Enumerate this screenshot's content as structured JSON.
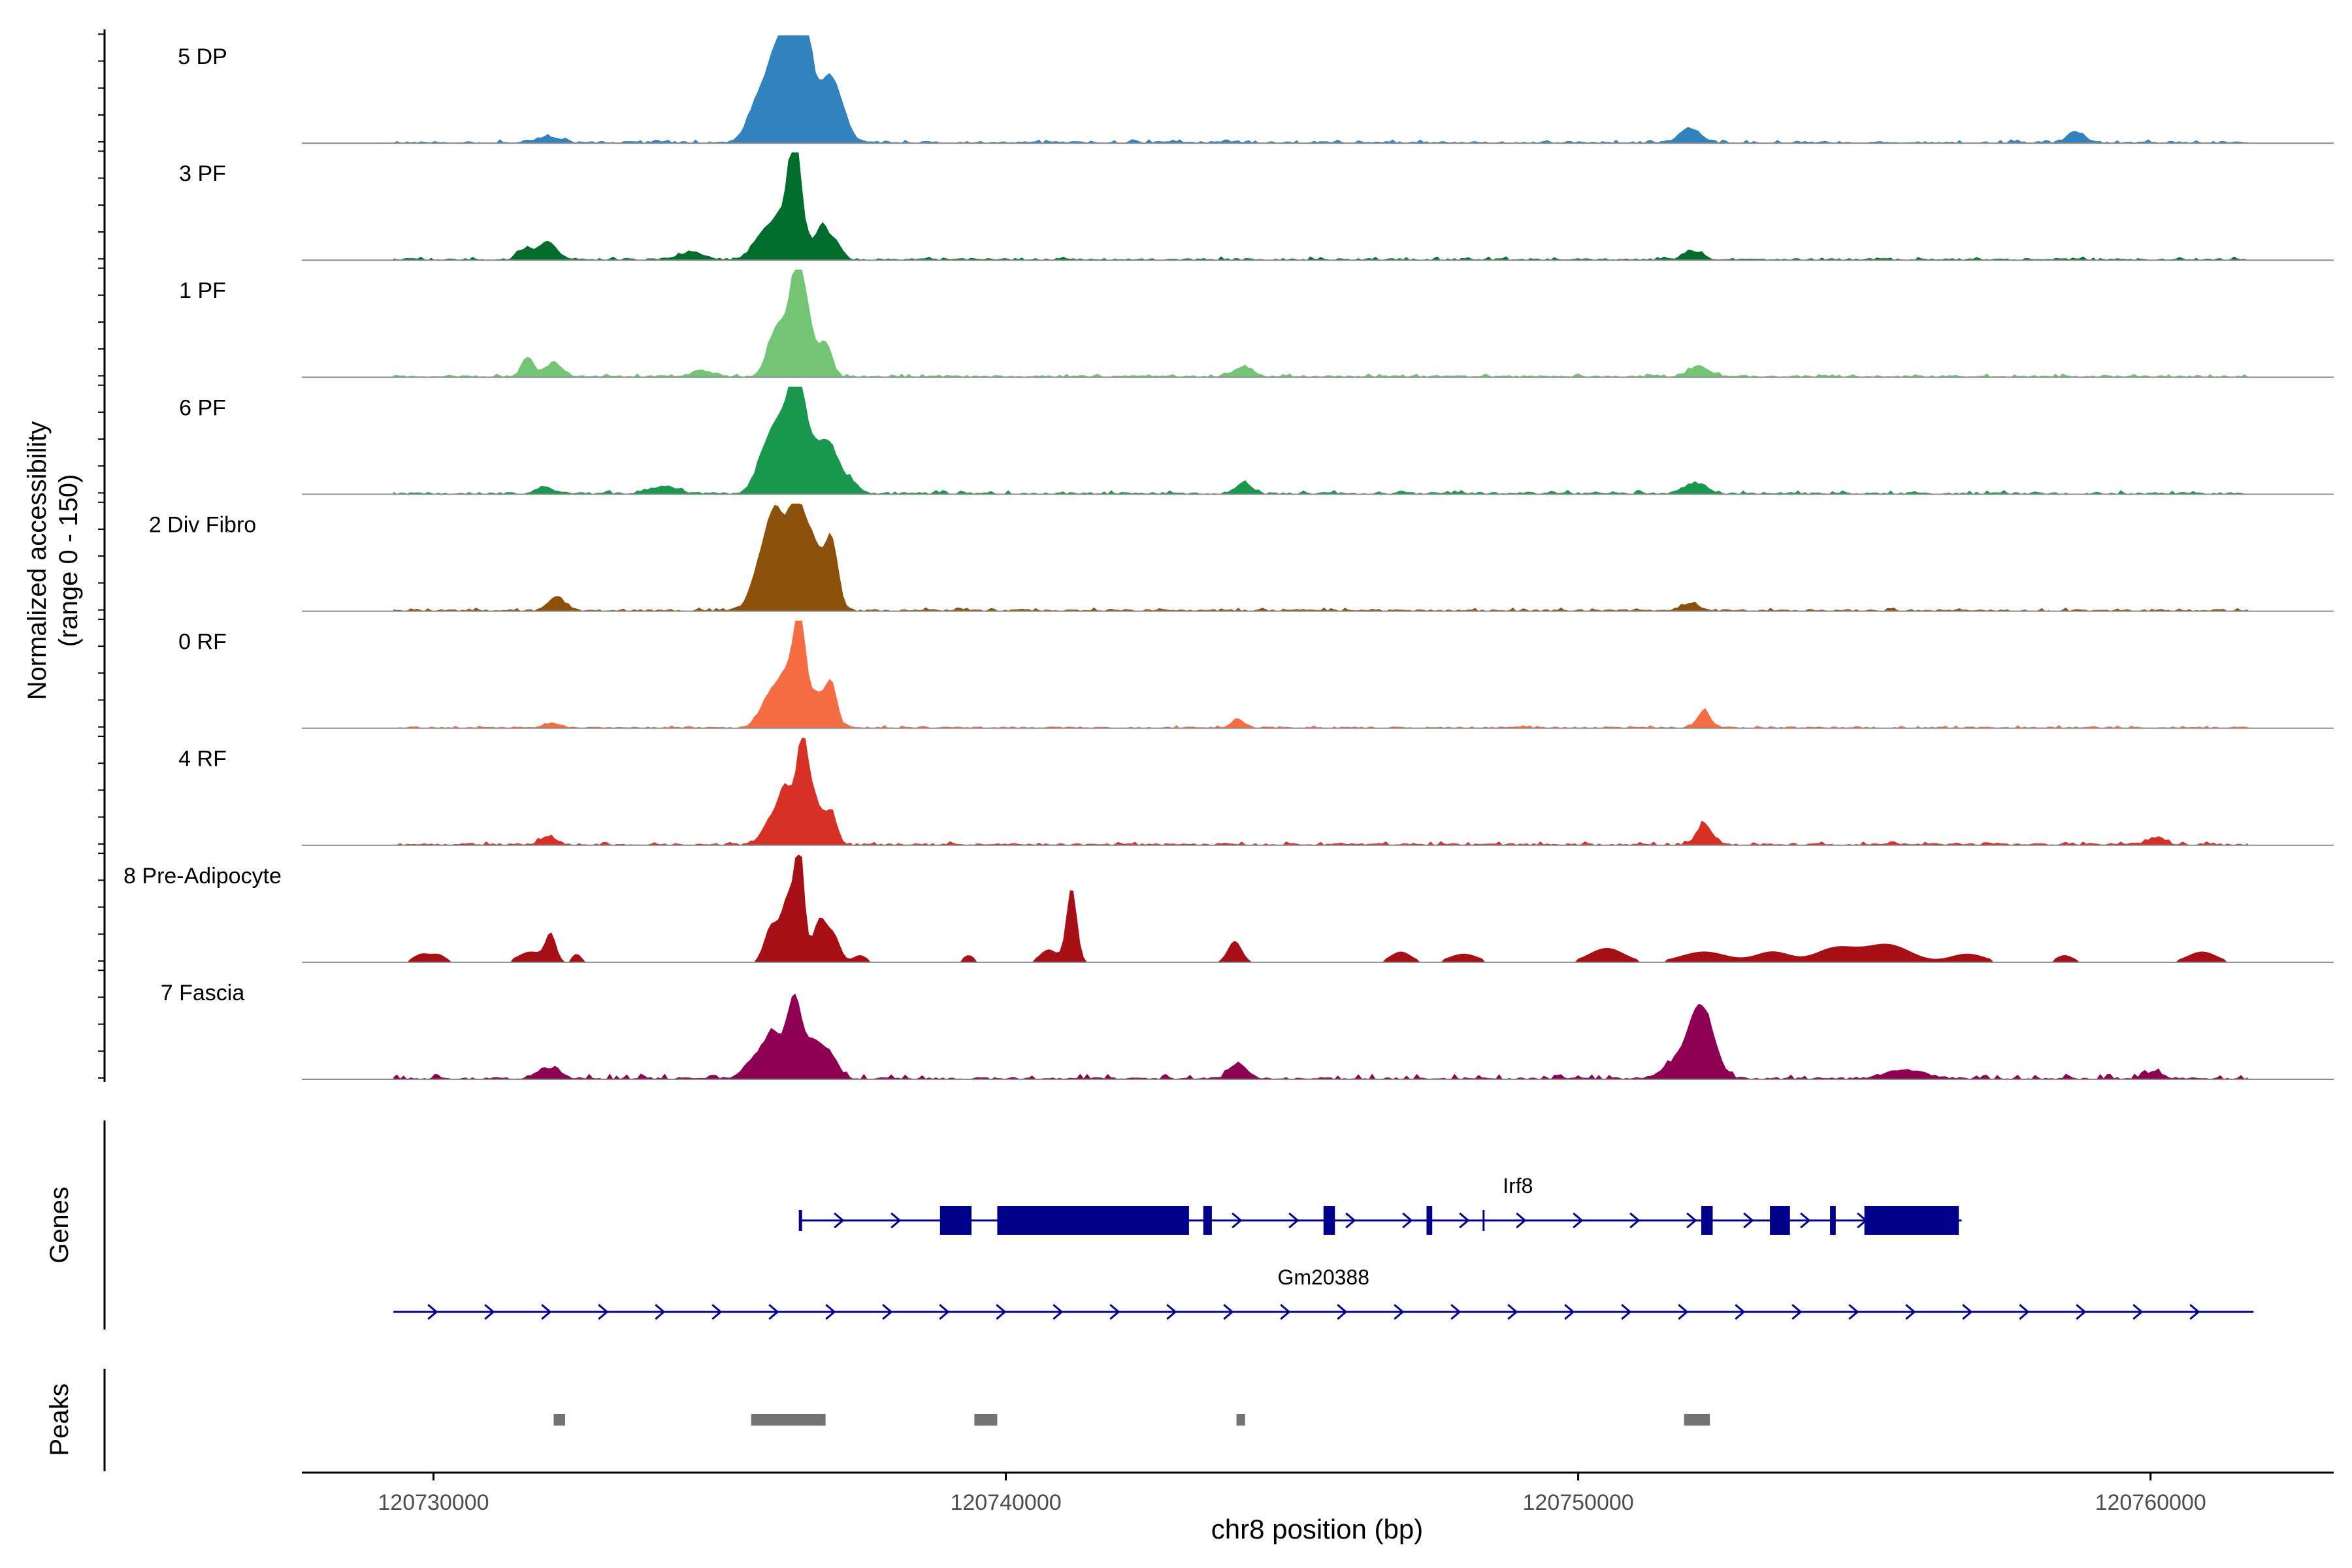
{
  "chart_data": {
    "type": "area",
    "title": "",
    "chromosome": "chr8",
    "xlabel": "chr8 position (bp)",
    "ylabel": "Normalized accessibility",
    "ylabel_range": "(range 0 - 150)",
    "xlim": [
      120727700,
      120763200
    ],
    "ylim": [
      0,
      150
    ],
    "x_ticks": [
      120730000,
      120740000,
      120750000,
      120760000
    ],
    "x_tick_labels": [
      "120730000",
      "120740000",
      "120750000",
      "120760000"
    ],
    "region": [
      120729300,
      120761700
    ],
    "tracks": [
      {
        "name": "5 DP",
        "color": "#3182bd",
        "baseline": 3,
        "noise": 1.2,
        "spikiness": 0.2,
        "noise_seed": 11,
        "peaks": [
          [
            120732000,
            220,
            8
          ],
          [
            120735700,
            200,
            60
          ],
          [
            120736050,
            180,
            120
          ],
          [
            120736350,
            150,
            150
          ],
          [
            120736500,
            120,
            110
          ],
          [
            120736850,
            160,
            80
          ],
          [
            120737100,
            150,
            45
          ],
          [
            120751950,
            180,
            20
          ],
          [
            120758700,
            150,
            15
          ]
        ]
      },
      {
        "name": "3 PF",
        "color": "#006d2c",
        "baseline": 3,
        "noise": 1.2,
        "spikiness": 0.2,
        "noise_seed": 23,
        "peaks": [
          [
            120731600,
            130,
            15
          ],
          [
            120732000,
            150,
            25
          ],
          [
            120734500,
            200,
            10
          ],
          [
            120735750,
            180,
            35
          ],
          [
            120736100,
            160,
            60
          ],
          [
            120736300,
            90,
            150
          ],
          [
            120736450,
            120,
            45
          ],
          [
            120736800,
            110,
            50
          ],
          [
            120737050,
            100,
            22
          ],
          [
            120752000,
            170,
            12
          ]
        ]
      },
      {
        "name": "1 PF",
        "color": "#74c476",
        "baseline": 3,
        "noise": 1.2,
        "spikiness": 0.2,
        "noise_seed": 37,
        "peaks": [
          [
            120731650,
            100,
            28
          ],
          [
            120732100,
            150,
            20
          ],
          [
            120734700,
            200,
            8
          ],
          [
            120735900,
            130,
            35
          ],
          [
            120736100,
            140,
            60
          ],
          [
            120736350,
            110,
            150
          ],
          [
            120736550,
            110,
            70
          ],
          [
            120736850,
            110,
            48
          ],
          [
            120744150,
            160,
            15
          ],
          [
            120752100,
            180,
            15
          ]
        ]
      },
      {
        "name": "6 PF",
        "color": "#1a9850",
        "baseline": 3,
        "noise": 1.5,
        "spikiness": 0.2,
        "noise_seed": 41,
        "peaks": [
          [
            120731950,
            150,
            10
          ],
          [
            120734000,
            250,
            10
          ],
          [
            120735800,
            180,
            50
          ],
          [
            120736100,
            180,
            90
          ],
          [
            120736350,
            120,
            150
          ],
          [
            120736600,
            130,
            60
          ],
          [
            120736900,
            150,
            70
          ],
          [
            120737250,
            150,
            20
          ],
          [
            120744150,
            130,
            15
          ],
          [
            120752050,
            200,
            15
          ]
        ]
      },
      {
        "name": "2 Div Fibro",
        "color": "#8c510a",
        "baseline": 3,
        "noise": 1.2,
        "spikiness": 0.2,
        "noise_seed": 53,
        "peaks": [
          [
            120732150,
            150,
            20
          ],
          [
            120735750,
            180,
            70
          ],
          [
            120736000,
            150,
            110
          ],
          [
            120736350,
            150,
            150
          ],
          [
            120736650,
            130,
            80
          ],
          [
            120736950,
            120,
            100
          ],
          [
            120751950,
            180,
            10
          ]
        ]
      },
      {
        "name": "0 RF",
        "color": "#f46d43",
        "baseline": 2.5,
        "noise": 1.0,
        "spikiness": 0.2,
        "noise_seed": 61,
        "peaks": [
          [
            120732100,
            150,
            6
          ],
          [
            120735850,
            160,
            40
          ],
          [
            120736150,
            150,
            65
          ],
          [
            120736400,
            110,
            150
          ],
          [
            120736700,
            110,
            45
          ],
          [
            120736950,
            100,
            65
          ],
          [
            120744050,
            120,
            12
          ],
          [
            120752200,
            110,
            25
          ]
        ]
      },
      {
        "name": "4 RF",
        "color": "#d73027",
        "baseline": 3,
        "noise": 1.4,
        "spikiness": 0.2,
        "noise_seed": 71,
        "peaks": [
          [
            120732000,
            150,
            10
          ],
          [
            120735900,
            160,
            35
          ],
          [
            120736150,
            120,
            70
          ],
          [
            120736450,
            110,
            150
          ],
          [
            120736700,
            110,
            50
          ],
          [
            120736950,
            100,
            45
          ],
          [
            120752200,
            130,
            30
          ],
          [
            120760100,
            150,
            10
          ]
        ]
      },
      {
        "name": "8 Pre-Adipocyte",
        "color": "#a50f15",
        "baseline": 0,
        "noise": 0,
        "spikiness": 0.75,
        "noise_seed": 83,
        "peaks": [
          [
            120729800,
            150,
            12
          ],
          [
            120730100,
            120,
            10
          ],
          [
            120731700,
            220,
            15
          ],
          [
            120732050,
            90,
            38
          ],
          [
            120732500,
            80,
            12
          ],
          [
            120735900,
            120,
            50
          ],
          [
            120736200,
            120,
            90
          ],
          [
            120736400,
            80,
            150
          ],
          [
            120736750,
            120,
            60
          ],
          [
            120737000,
            110,
            35
          ],
          [
            120737450,
            120,
            10
          ],
          [
            120739350,
            100,
            10
          ],
          [
            120741150,
            90,
            105
          ],
          [
            120740750,
            150,
            18
          ],
          [
            120744000,
            120,
            30
          ],
          [
            120746900,
            180,
            15
          ],
          [
            120748000,
            250,
            12
          ],
          [
            120750500,
            300,
            20
          ],
          [
            120752200,
            400,
            15
          ],
          [
            120753400,
            300,
            15
          ],
          [
            120754500,
            350,
            20
          ],
          [
            120755400,
            400,
            25
          ],
          [
            120756800,
            300,
            12
          ],
          [
            120758500,
            150,
            10
          ],
          [
            120760900,
            250,
            15
          ]
        ]
      },
      {
        "name": "7 Fascia",
        "color": "#8e0152",
        "baseline": 3,
        "noise": 2.5,
        "spikiness": 0.2,
        "noise_seed": 97,
        "peaks": [
          [
            120732000,
            200,
            15
          ],
          [
            120735650,
            200,
            30
          ],
          [
            120735950,
            150,
            55
          ],
          [
            120736300,
            120,
            110
          ],
          [
            120736600,
            150,
            45
          ],
          [
            120736900,
            160,
            35
          ],
          [
            120744050,
            150,
            22
          ],
          [
            120751700,
            250,
            20
          ],
          [
            120752150,
            220,
            100
          ],
          [
            120755700,
            350,
            12
          ],
          [
            120760050,
            150,
            10
          ]
        ]
      }
    ],
    "genes": {
      "label": "Genes",
      "items": [
        {
          "name": "Irf8",
          "strand": "+",
          "start": 120736400,
          "end": 120756700,
          "exons": [
            [
              120736390,
              120736440
            ],
            [
              120738850,
              120739400
            ],
            [
              120739850,
              120743200
            ],
            [
              120743450,
              120743600
            ],
            [
              120745550,
              120745750
            ],
            [
              120747350,
              120747450
            ],
            [
              120748330,
              120748350
            ],
            [
              120752150,
              120752350
            ],
            [
              120753350,
              120753700
            ],
            [
              120754400,
              120754500
            ],
            [
              120755000,
              120756650
            ]
          ]
        },
        {
          "name": "Gm20388",
          "strand": "+",
          "start": 120729300,
          "end": 120761800,
          "exons": []
        }
      ]
    },
    "peaks": {
      "label": "Peaks",
      "regions": [
        [
          120732100,
          120732300
        ],
        [
          120735550,
          120736850
        ],
        [
          120739450,
          120739850
        ],
        [
          120744030,
          120744180
        ],
        [
          120751850,
          120752300
        ]
      ]
    }
  }
}
